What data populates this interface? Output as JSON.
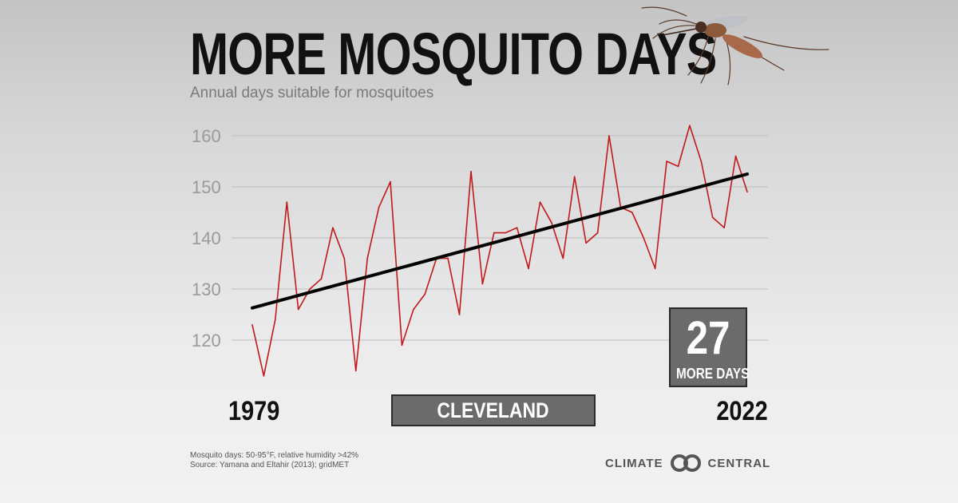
{
  "header": {
    "title": "MORE MOSQUITO DAYS",
    "subtitle": "Annual days suitable for mosquitoes"
  },
  "labels": {
    "start_year": "1979",
    "end_year": "2022",
    "city": "CLEVELAND",
    "stat_value": "27",
    "stat_label": "MORE DAYS"
  },
  "footer": {
    "note_line1": "Mosquito days: 50-95°F, relative humidity >42%",
    "note_line2": "Source: Yamana and Eltahir (2013); gridMET",
    "logo_left": "CLIMATE",
    "logo_right": "CENTRAL"
  },
  "icons": {
    "mosquito": "mosquito-icon",
    "logo": "climate-central-logo-icon"
  },
  "colors": {
    "data_line": "#c0191c",
    "trend_line": "#000000",
    "grid": "#bdbdbd",
    "box_fill": "#6b6b6b"
  },
  "chart_data": {
    "type": "line",
    "title": "MORE MOSQUITO DAYS",
    "subtitle": "Annual days suitable for mosquitoes",
    "xlabel": "",
    "ylabel": "",
    "xlim": [
      1979,
      2022
    ],
    "ylim": [
      110,
      165
    ],
    "yticks": [
      120,
      130,
      140,
      150,
      160
    ],
    "grid": true,
    "x": [
      1979,
      1980,
      1981,
      1982,
      1983,
      1984,
      1985,
      1986,
      1987,
      1988,
      1989,
      1990,
      1991,
      1992,
      1993,
      1994,
      1995,
      1996,
      1997,
      1998,
      1999,
      2000,
      2001,
      2002,
      2003,
      2004,
      2005,
      2006,
      2007,
      2008,
      2009,
      2010,
      2011,
      2012,
      2013,
      2014,
      2015,
      2016,
      2017,
      2018,
      2019,
      2020,
      2021,
      2022
    ],
    "series": [
      {
        "values": [
          123,
          113,
          124,
          147,
          126,
          130,
          132,
          142,
          136,
          114,
          136,
          146,
          151,
          119,
          126,
          129,
          136,
          136,
          125,
          153,
          131,
          141,
          141,
          142,
          134,
          147,
          143,
          136,
          152,
          139,
          141,
          160,
          146,
          145,
          140,
          134,
          155,
          154,
          162,
          155,
          144,
          142,
          156,
          149
        ]
      }
    ],
    "trend": {
      "start": [
        1979,
        126.3
      ],
      "end": [
        2022,
        152.5
      ]
    }
  }
}
